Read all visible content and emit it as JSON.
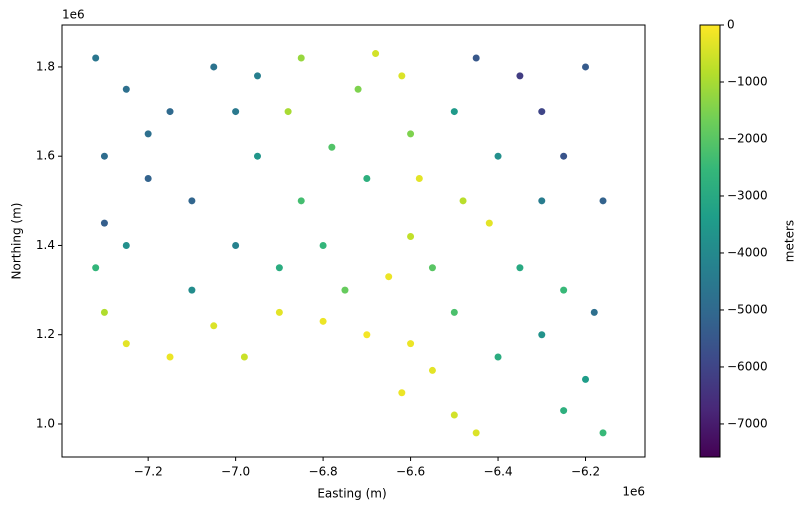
{
  "chart_data": {
    "type": "scatter",
    "x_label": "Easting (m)",
    "y_label": "Northing (m)",
    "x_offset": "1e6",
    "y_offset": "1e6",
    "colorbar_label": "meters",
    "colormap": [
      "#440154",
      "#482878",
      "#3e4989",
      "#31688e",
      "#26828e",
      "#1f9e89",
      "#35b779",
      "#6ece58",
      "#b5de2b",
      "#fde725"
    ],
    "clim": [
      -7580,
      0
    ],
    "cticks": [
      0,
      {
        "value": -1000,
        "label": "−1000"
      },
      {
        "value": -2000,
        "label": "−2000"
      },
      {
        "value": -3000,
        "label": "−3000"
      },
      {
        "value": -4000,
        "label": "−4000"
      },
      {
        "value": -5000,
        "label": "−5000"
      },
      {
        "value": -6000,
        "label": "−6000"
      },
      {
        "value": -7000,
        "label": "−7000"
      }
    ],
    "xlim": [
      -7.397,
      -6.064
    ],
    "xticks": [
      {
        "value": -7.2,
        "label": "−7.2"
      },
      {
        "value": -7.0,
        "label": "−7.0"
      },
      {
        "value": -6.8,
        "label": "−6.8"
      },
      {
        "value": -6.6,
        "label": "−6.6"
      },
      {
        "value": -6.4,
        "label": "−6.4"
      },
      {
        "value": -6.2,
        "label": "−6.2"
      }
    ],
    "ylim": [
      0.926,
      1.894
    ],
    "yticks": [
      {
        "value": 1.0,
        "label": "1.0"
      },
      1.2,
      1.4,
      1.6,
      1.8
    ],
    "x": [
      -7.32,
      -7.25,
      -7.15,
      -7.05,
      -6.95,
      -7.3,
      -7.2,
      -7.1,
      -7.3,
      -7.25,
      -7.32,
      -7.3,
      -7.25,
      -7.15,
      -7.05,
      -6.98,
      -6.9,
      -6.8,
      -6.7,
      -6.6,
      -6.55,
      -6.62,
      -6.5,
      -6.45,
      -7.0,
      -6.95,
      -6.88,
      -6.85,
      -6.85,
      -6.8,
      -6.75,
      -6.7,
      -6.72,
      -6.68,
      -6.62,
      -6.6,
      -6.58,
      -6.6,
      -6.65,
      -6.55,
      -6.5,
      -6.48,
      -6.42,
      -6.4,
      -6.45,
      -6.35,
      -6.3,
      -6.25,
      -6.2,
      -6.16,
      -6.3,
      -6.35,
      -6.25,
      -6.18,
      -6.3,
      -6.4,
      -6.2,
      -6.25,
      -6.16,
      -6.5,
      -7.1,
      -7.2,
      -7.0,
      -6.78,
      -6.9
    ],
    "y": [
      1.82,
      1.75,
      1.7,
      1.8,
      1.78,
      1.6,
      1.55,
      1.5,
      1.45,
      1.4,
      1.35,
      1.25,
      1.18,
      1.15,
      1.22,
      1.15,
      1.25,
      1.23,
      1.2,
      1.18,
      1.12,
      1.07,
      1.02,
      0.98,
      1.4,
      1.6,
      1.7,
      1.82,
      1.5,
      1.4,
      1.3,
      1.55,
      1.75,
      1.83,
      1.78,
      1.65,
      1.55,
      1.42,
      1.33,
      1.35,
      1.7,
      1.5,
      1.45,
      1.6,
      1.82,
      1.78,
      1.7,
      1.6,
      1.8,
      1.5,
      1.5,
      1.35,
      1.3,
      1.25,
      1.2,
      1.15,
      1.1,
      1.03,
      0.98,
      1.25,
      1.3,
      1.65,
      1.7,
      1.62,
      1.35
    ],
    "c": [
      -4600,
      -4800,
      -5000,
      -4700,
      -4300,
      -4900,
      -5200,
      -5100,
      -5300,
      -3800,
      -2600,
      -900,
      -300,
      -200,
      -400,
      -600,
      -300,
      -200,
      -100,
      -200,
      -300,
      -200,
      -500,
      -400,
      -4200,
      -3600,
      -1000,
      -1200,
      -2300,
      -2600,
      -1800,
      -2800,
      -1500,
      -500,
      -400,
      -1500,
      -300,
      -700,
      -200,
      -2000,
      -3500,
      -800,
      -300,
      -3800,
      -5500,
      -6200,
      -6000,
      -5600,
      -5400,
      -5200,
      -4400,
      -3000,
      -2500,
      -4800,
      -3700,
      -2900,
      -3400,
      -2800,
      -2500,
      -2200,
      -3900,
      -4800,
      -4500,
      -2100,
      -2900
    ]
  }
}
